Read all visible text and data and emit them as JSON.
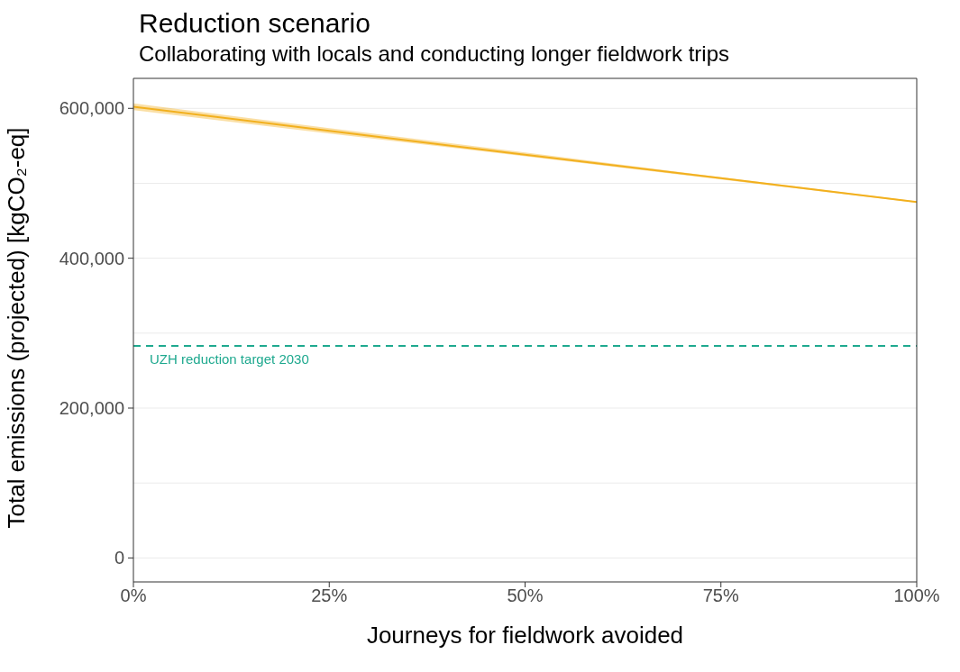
{
  "chart_data": {
    "type": "line",
    "title": "Reduction scenario",
    "subtitle": "Collaborating with locals and conducting longer fieldwork trips",
    "xlabel": "Journeys for fieldwork avoided",
    "ylabel": "Total emissions (projected) [kgCO₂-eq]",
    "x": [
      0,
      25,
      50,
      75,
      100
    ],
    "series": [
      {
        "color": "#f2b01e",
        "values": [
          602000,
          570000,
          538000,
          507000,
          475000
        ],
        "lower": [
          597500,
          566500,
          536000,
          505000,
          474000
        ],
        "upper": [
          606500,
          573500,
          541000,
          508000,
          476000
        ]
      }
    ],
    "xlim": [
      0,
      100
    ],
    "xticks": [
      {
        "value": 0,
        "label": "0%"
      },
      {
        "value": 25,
        "label": "25%"
      },
      {
        "value": 50,
        "label": "50%"
      },
      {
        "value": 75,
        "label": "75%"
      },
      {
        "value": 100,
        "label": "100%"
      }
    ],
    "ylim": [
      -32000,
      640000
    ],
    "yticks": [
      {
        "value": 0,
        "label": "0"
      },
      {
        "value": 100000,
        "label": null
      },
      {
        "value": 200000,
        "label": "200,000"
      },
      {
        "value": 300000,
        "label": null
      },
      {
        "value": 400000,
        "label": "400,000"
      },
      {
        "value": 500000,
        "label": null
      },
      {
        "value": 600000,
        "label": "600,000"
      }
    ],
    "ref_lines": [
      {
        "axis": "y",
        "value": 283000,
        "label": "UZH reduction target 2030",
        "color": "#1fa98f",
        "line_style": "dashed"
      }
    ],
    "grid": "y",
    "marker": "none",
    "line_style": "solid"
  }
}
